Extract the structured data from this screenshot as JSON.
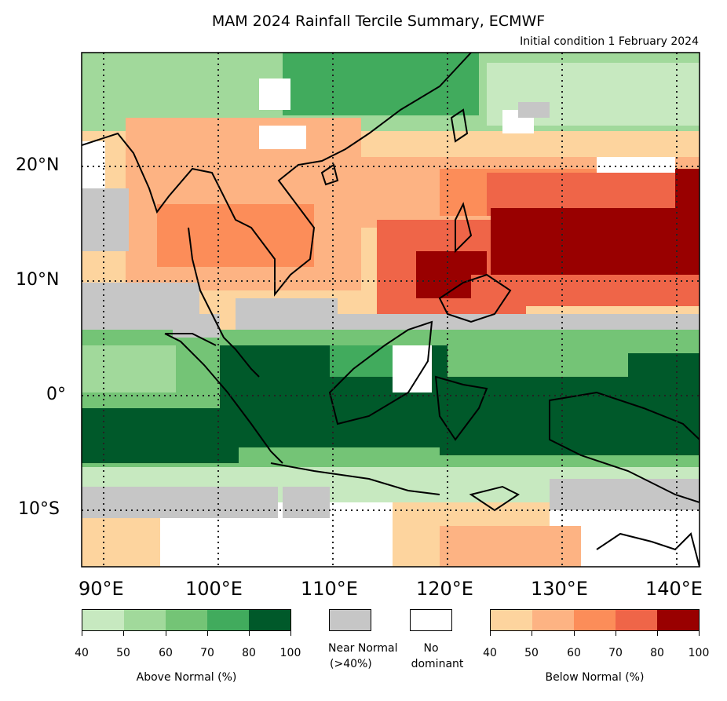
{
  "title": "MAM 2024 Rainfall Tercile Summary, ECMWF",
  "subtitle": "Initial condition 1 February 2024",
  "latitude_labels": [
    "20°N",
    "10°N",
    "0°",
    "10°S"
  ],
  "longitude_labels": [
    "90°E",
    "100°E",
    "110°E",
    "120°E",
    "130°E",
    "140°E"
  ],
  "legend": {
    "above_normal": {
      "label": "Above Normal (%)",
      "ticks": [
        "40",
        "50",
        "60",
        "70",
        "80",
        "100"
      ],
      "colors": [
        "#c7e9c0",
        "#a1d99b",
        "#74c476",
        "#41ab5d",
        "#00592a"
      ]
    },
    "near_normal": {
      "label_line1": "Near Normal",
      "label_line2": "(>40%)",
      "color": "#c6c6c6"
    },
    "no_dominant": {
      "label_line1": "No",
      "label_line2": "dominant",
      "color": "#ffffff"
    },
    "below_normal": {
      "label": "Below Normal (%)",
      "ticks": [
        "40",
        "50",
        "60",
        "70",
        "80",
        "100"
      ],
      "colors": [
        "#fdd49e",
        "#fdb383",
        "#fc8d59",
        "#ef6548",
        "#990000"
      ]
    }
  },
  "map_extent": {
    "lon": [
      88,
      142
    ],
    "lat": [
      -15,
      30
    ]
  },
  "gridlines_lon": [
    90,
    100,
    110,
    120,
    130,
    140
  ],
  "gridlines_lat": [
    20,
    10,
    0,
    -10
  ]
}
